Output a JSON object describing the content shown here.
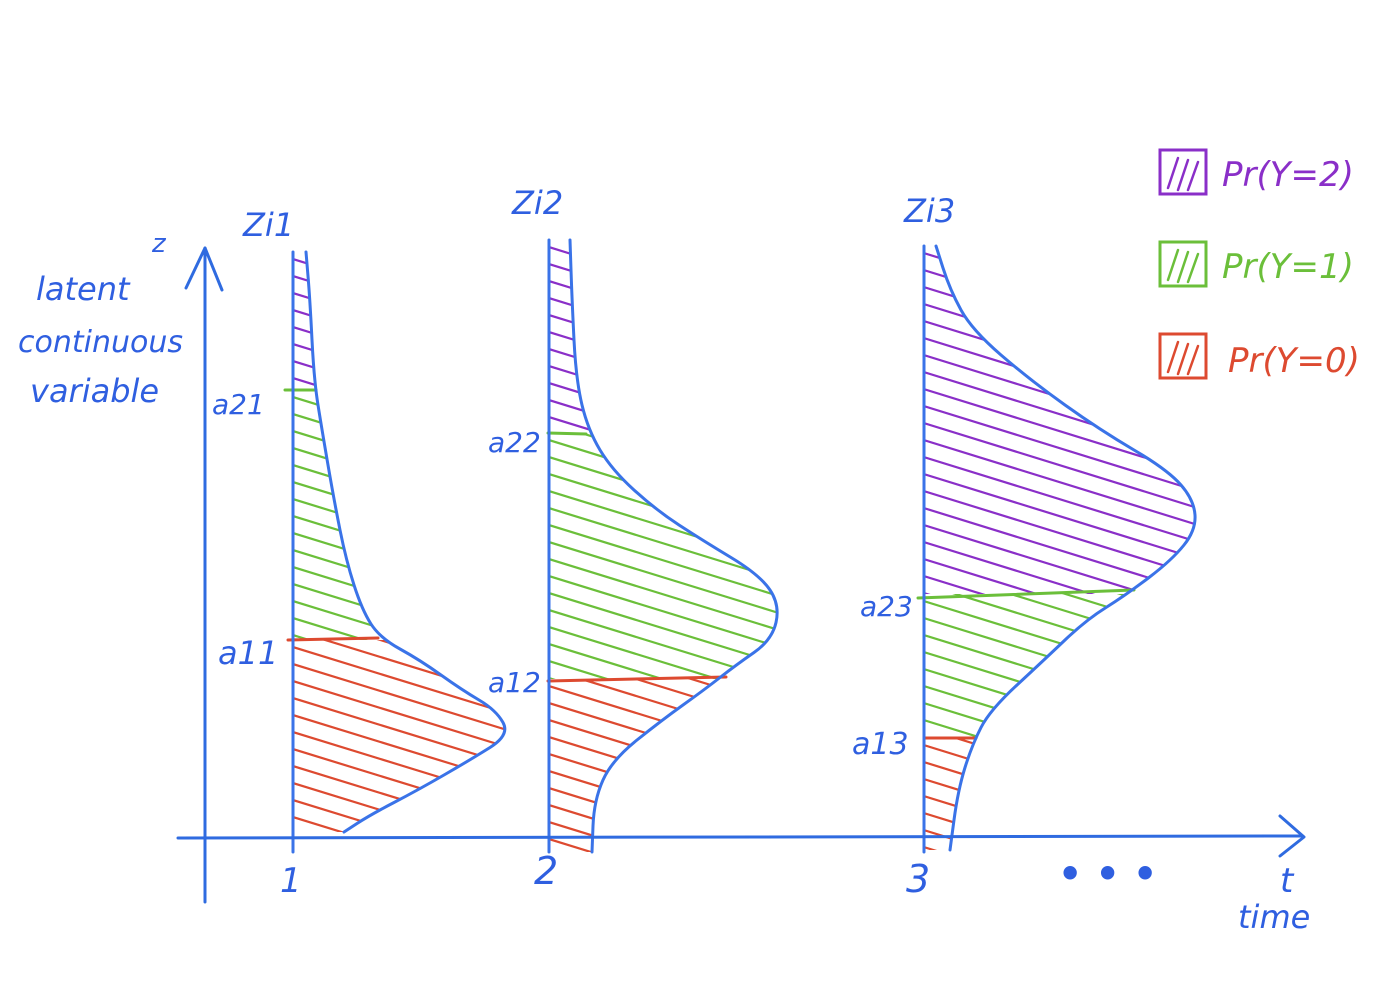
{
  "colors": {
    "axis": "#2f6be0",
    "curve": "#3a73e8",
    "purple": "#8a2fc8",
    "green": "#6bbf3a",
    "red": "#dd4a30"
  },
  "axes": {
    "y_symbol": "z",
    "y_label_lines": [
      "latent",
      "continuous",
      "variable"
    ],
    "x_symbol": "t",
    "x_label": "time",
    "ellipsis": "• • •"
  },
  "legend": [
    {
      "label": "Pr(Y=2)",
      "color_key": "purple"
    },
    {
      "label": "Pr(Y=1)",
      "color_key": "green"
    },
    {
      "label": "Pr(Y=0)",
      "color_key": "red"
    }
  ],
  "time_points": [
    {
      "tick": "1",
      "z_label": "Zi1",
      "upper_threshold": "a21",
      "lower_threshold": "a11"
    },
    {
      "tick": "2",
      "z_label": "Zi2",
      "upper_threshold": "a22",
      "lower_threshold": "a12"
    },
    {
      "tick": "3",
      "z_label": "Zi3",
      "upper_threshold": "a23",
      "lower_threshold": "a13"
    }
  ]
}
